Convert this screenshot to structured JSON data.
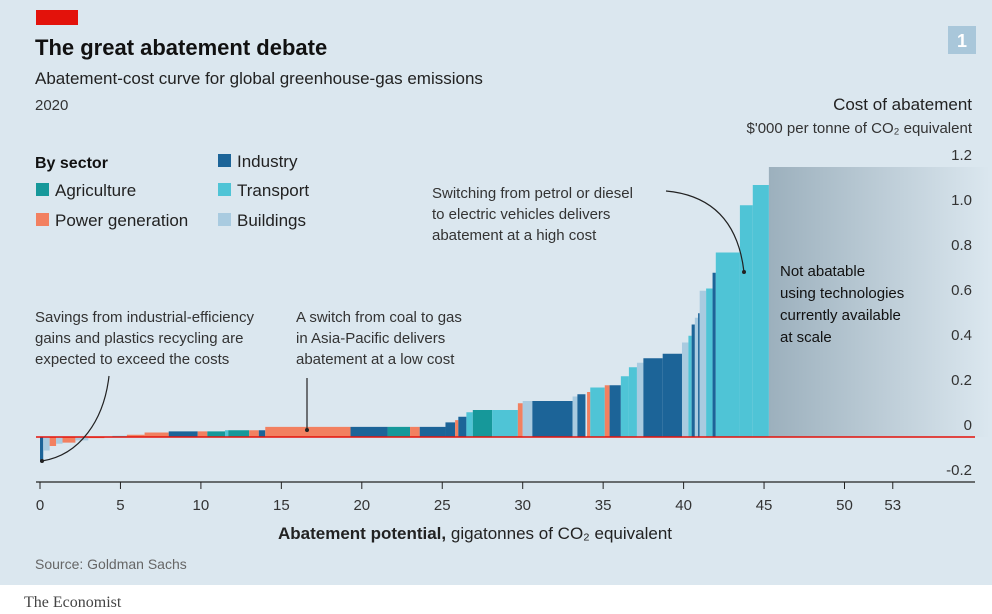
{
  "header": {
    "title": "The great abatement debate",
    "subtitle": "Abatement-cost curve for global greenhouse-gas emissions",
    "year": "2020",
    "chart_number": "1"
  },
  "legend": {
    "title": "By sector",
    "items": [
      {
        "label": "Agriculture",
        "color": "#16989a"
      },
      {
        "label": "Power generation",
        "color": "#f28060"
      },
      {
        "label": "Industry",
        "color": "#1c6498"
      },
      {
        "label": "Transport",
        "color": "#4fc4d6"
      },
      {
        "label": "Buildings",
        "color": "#a9cbe0"
      }
    ]
  },
  "annotations": {
    "industrial": [
      "Savings from industrial-efficiency",
      "gains and plastics recycling are",
      "expected to exceed the costs"
    ],
    "coal_gas": [
      "A switch from coal to gas",
      "in Asia-Pacific delivers",
      "abatement at a low cost"
    ],
    "ev": [
      "Switching from petrol or diesel",
      "to electric vehicles delivers",
      "abatement at a high cost"
    ],
    "not_abatable": [
      "Not abatable",
      "using technologies",
      "currently available",
      "at scale"
    ]
  },
  "footer": {
    "source": "Source: Goldman Sachs",
    "brand": "The Economist"
  },
  "colors": {
    "zero_line": "#e3120b",
    "brand_red": "#e3120b",
    "not_abatable": "#9fb3c0"
  },
  "chart_data": {
    "type": "bar",
    "variant": "marimekko cost curve",
    "title": "The great abatement debate",
    "ylabel": "Cost of abatement",
    "yunit": "$'000 per tonne of CO₂ equivalent",
    "xlabel_bold": "Abatement potential,",
    "xlabel": "gigatonnes of CO₂ equivalent",
    "xlim": [
      0,
      58
    ],
    "ylim": [
      -0.25,
      1.25
    ],
    "xticks": [
      "0",
      "5",
      "10",
      "15",
      "20",
      "25",
      "30",
      "35",
      "40",
      "45",
      "50",
      "53"
    ],
    "xtick_values": [
      0,
      5,
      10,
      15,
      20,
      25,
      30,
      35,
      40,
      45,
      50,
      53
    ],
    "yticks": [
      "1.2",
      "1.0",
      "0.8",
      "0.6",
      "0.4",
      "0.2",
      "0",
      "-0.2"
    ],
    "ytick_values": [
      1.2,
      1.0,
      0.8,
      0.6,
      0.4,
      0.2,
      0,
      -0.2
    ],
    "grid": false,
    "legend_position": "top-left",
    "not_abatable_range": [
      45.3,
      58
    ],
    "not_abatable_level": 1.2,
    "bars": [
      {
        "x0": 0.0,
        "x1": 0.2,
        "cost": -0.11,
        "sector": "Industry"
      },
      {
        "x0": 0.2,
        "x1": 0.6,
        "cost": -0.06,
        "sector": "Buildings"
      },
      {
        "x0": 0.6,
        "x1": 1.0,
        "cost": -0.04,
        "sector": "Power generation"
      },
      {
        "x0": 1.0,
        "x1": 1.4,
        "cost": -0.03,
        "sector": "Buildings"
      },
      {
        "x0": 1.4,
        "x1": 2.2,
        "cost": -0.025,
        "sector": "Power generation"
      },
      {
        "x0": 2.2,
        "x1": 3.0,
        "cost": -0.015,
        "sector": "Buildings"
      },
      {
        "x0": 3.0,
        "x1": 4.0,
        "cost": -0.005,
        "sector": "Power generation"
      },
      {
        "x0": 4.5,
        "x1": 5.4,
        "cost": 0.005,
        "sector": "Transport"
      },
      {
        "x0": 5.4,
        "x1": 6.5,
        "cost": 0.01,
        "sector": "Power generation"
      },
      {
        "x0": 6.5,
        "x1": 8.0,
        "cost": 0.02,
        "sector": "Power generation"
      },
      {
        "x0": 8.0,
        "x1": 9.8,
        "cost": 0.025,
        "sector": "Industry"
      },
      {
        "x0": 9.8,
        "x1": 10.4,
        "cost": 0.025,
        "sector": "Power generation"
      },
      {
        "x0": 10.4,
        "x1": 11.5,
        "cost": 0.025,
        "sector": "Agriculture"
      },
      {
        "x0": 11.5,
        "x1": 11.7,
        "cost": 0.03,
        "sector": "Transport"
      },
      {
        "x0": 11.7,
        "x1": 13.0,
        "cost": 0.03,
        "sector": "Agriculture"
      },
      {
        "x0": 13.0,
        "x1": 13.6,
        "cost": 0.03,
        "sector": "Power generation"
      },
      {
        "x0": 13.6,
        "x1": 14.0,
        "cost": 0.03,
        "sector": "Industry"
      },
      {
        "x0": 14.0,
        "x1": 19.3,
        "cost": 0.045,
        "sector": "Power generation"
      },
      {
        "x0": 19.3,
        "x1": 21.6,
        "cost": 0.045,
        "sector": "Industry"
      },
      {
        "x0": 21.6,
        "x1": 23.0,
        "cost": 0.045,
        "sector": "Agriculture"
      },
      {
        "x0": 23.0,
        "x1": 23.6,
        "cost": 0.045,
        "sector": "Power generation"
      },
      {
        "x0": 23.6,
        "x1": 25.2,
        "cost": 0.045,
        "sector": "Industry"
      },
      {
        "x0": 25.2,
        "x1": 25.8,
        "cost": 0.065,
        "sector": "Industry"
      },
      {
        "x0": 25.8,
        "x1": 26.0,
        "cost": 0.075,
        "sector": "Power generation"
      },
      {
        "x0": 26.0,
        "x1": 26.5,
        "cost": 0.09,
        "sector": "Industry"
      },
      {
        "x0": 26.5,
        "x1": 26.9,
        "cost": 0.11,
        "sector": "Transport"
      },
      {
        "x0": 26.9,
        "x1": 28.1,
        "cost": 0.12,
        "sector": "Agriculture"
      },
      {
        "x0": 28.1,
        "x1": 29.7,
        "cost": 0.12,
        "sector": "Transport"
      },
      {
        "x0": 29.7,
        "x1": 30.0,
        "cost": 0.15,
        "sector": "Power generation"
      },
      {
        "x0": 30.0,
        "x1": 30.6,
        "cost": 0.16,
        "sector": "Buildings"
      },
      {
        "x0": 30.6,
        "x1": 33.1,
        "cost": 0.16,
        "sector": "Industry"
      },
      {
        "x0": 33.1,
        "x1": 33.4,
        "cost": 0.18,
        "sector": "Buildings"
      },
      {
        "x0": 33.4,
        "x1": 33.9,
        "cost": 0.19,
        "sector": "Industry"
      },
      {
        "x0": 34.0,
        "x1": 34.2,
        "cost": 0.2,
        "sector": "Power generation"
      },
      {
        "x0": 34.2,
        "x1": 35.1,
        "cost": 0.22,
        "sector": "Transport"
      },
      {
        "x0": 35.1,
        "x1": 35.4,
        "cost": 0.23,
        "sector": "Power generation"
      },
      {
        "x0": 35.4,
        "x1": 36.1,
        "cost": 0.23,
        "sector": "Industry"
      },
      {
        "x0": 36.1,
        "x1": 36.6,
        "cost": 0.27,
        "sector": "Transport"
      },
      {
        "x0": 36.6,
        "x1": 37.1,
        "cost": 0.31,
        "sector": "Transport"
      },
      {
        "x0": 37.1,
        "x1": 37.5,
        "cost": 0.33,
        "sector": "Buildings"
      },
      {
        "x0": 37.5,
        "x1": 38.7,
        "cost": 0.35,
        "sector": "Industry"
      },
      {
        "x0": 38.7,
        "x1": 39.9,
        "cost": 0.37,
        "sector": "Industry"
      },
      {
        "x0": 39.9,
        "x1": 40.3,
        "cost": 0.42,
        "sector": "Buildings"
      },
      {
        "x0": 40.3,
        "x1": 40.5,
        "cost": 0.45,
        "sector": "Transport"
      },
      {
        "x0": 40.5,
        "x1": 40.7,
        "cost": 0.5,
        "sector": "Industry"
      },
      {
        "x0": 40.7,
        "x1": 40.9,
        "cost": 0.53,
        "sector": "Buildings"
      },
      {
        "x0": 40.9,
        "x1": 41.0,
        "cost": 0.55,
        "sector": "Industry"
      },
      {
        "x0": 41.0,
        "x1": 41.4,
        "cost": 0.65,
        "sector": "Buildings"
      },
      {
        "x0": 41.4,
        "x1": 41.8,
        "cost": 0.66,
        "sector": "Transport"
      },
      {
        "x0": 41.8,
        "x1": 42.0,
        "cost": 0.73,
        "sector": "Industry"
      },
      {
        "x0": 42.0,
        "x1": 43.5,
        "cost": 0.82,
        "sector": "Transport"
      },
      {
        "x0": 43.5,
        "x1": 44.3,
        "cost": 1.03,
        "sector": "Transport"
      },
      {
        "x0": 44.3,
        "x1": 45.3,
        "cost": 1.12,
        "sector": "Transport"
      }
    ]
  }
}
